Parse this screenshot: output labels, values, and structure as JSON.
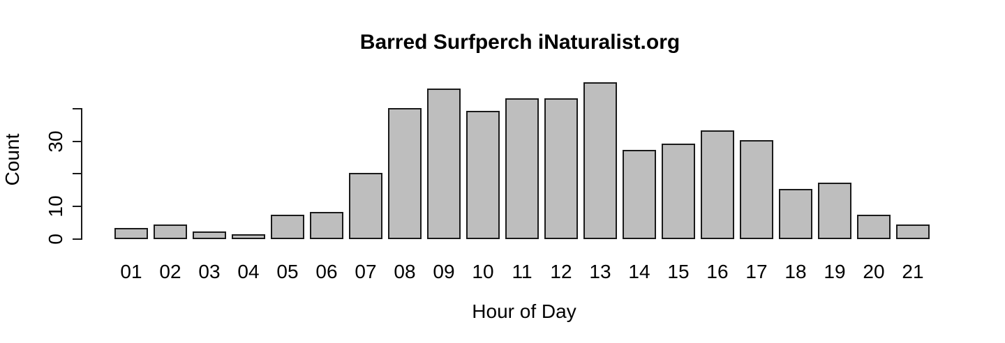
{
  "chart_data": {
    "type": "bar",
    "title": "Barred Surfperch iNaturalist.org",
    "xlabel": "Hour of Day",
    "ylabel": "Count",
    "categories": [
      "01",
      "02",
      "03",
      "04",
      "05",
      "06",
      "07",
      "08",
      "09",
      "10",
      "11",
      "12",
      "13",
      "14",
      "15",
      "16",
      "17",
      "18",
      "19",
      "20",
      "21"
    ],
    "values": [
      3,
      4,
      2,
      1,
      7,
      8,
      20,
      40,
      46,
      39,
      43,
      43,
      48,
      27,
      29,
      33,
      30,
      15,
      17,
      7,
      4
    ],
    "ylim": [
      0,
      48
    ],
    "y_ticks": [
      0,
      10,
      20,
      30,
      40
    ],
    "y_tick_labels_shown": [
      "0",
      "10",
      "30"
    ],
    "grid": "off",
    "legend": "none",
    "colors": {
      "bar_fill": "#bebebe",
      "bar_border": "#1a1a1a",
      "background": "#ffffff",
      "text": "#000000"
    }
  }
}
